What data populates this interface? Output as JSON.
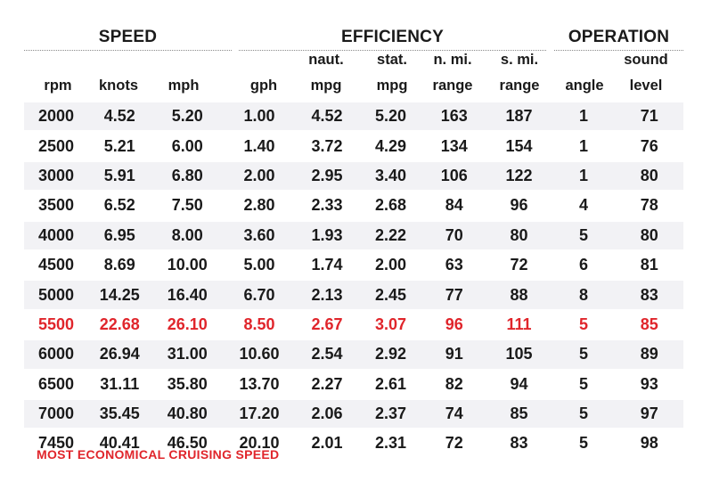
{
  "groups": {
    "speed": "SPEED",
    "efficiency": "EFFICIENCY",
    "operation": "OPERATION"
  },
  "columns": {
    "rpm": [
      "",
      "rpm"
    ],
    "knots": [
      "",
      "knots"
    ],
    "mph": [
      "",
      "mph"
    ],
    "gph": [
      "",
      "gph"
    ],
    "naut_mpg": [
      "naut.",
      "mpg"
    ],
    "stat_mpg": [
      "stat.",
      "mpg"
    ],
    "nmi_range": [
      "n. mi.",
      "range"
    ],
    "smi_range": [
      "s. mi.",
      "range"
    ],
    "angle": [
      "",
      "angle"
    ],
    "sound": [
      "sound",
      "level"
    ]
  },
  "colors": {
    "highlight": "#e0252b",
    "stripe": "#f2f2f5",
    "text": "#1a1a1a"
  },
  "chart_data": {
    "type": "table",
    "column_headers": [
      "rpm",
      "knots",
      "mph",
      "gph",
      "naut. mpg",
      "stat. mpg",
      "n. mi. range",
      "s. mi. range",
      "angle",
      "sound level"
    ],
    "rows": [
      [
        "2000",
        "4.52",
        "5.20",
        "1.00",
        "4.52",
        "5.20",
        "163",
        "187",
        "1",
        "71"
      ],
      [
        "2500",
        "5.21",
        "6.00",
        "1.40",
        "3.72",
        "4.29",
        "134",
        "154",
        "1",
        "76"
      ],
      [
        "3000",
        "5.91",
        "6.80",
        "2.00",
        "2.95",
        "3.40",
        "106",
        "122",
        "1",
        "80"
      ],
      [
        "3500",
        "6.52",
        "7.50",
        "2.80",
        "2.33",
        "2.68",
        "84",
        "96",
        "4",
        "78"
      ],
      [
        "4000",
        "6.95",
        "8.00",
        "3.60",
        "1.93",
        "2.22",
        "70",
        "80",
        "5",
        "80"
      ],
      [
        "4500",
        "8.69",
        "10.00",
        "5.00",
        "1.74",
        "2.00",
        "63",
        "72",
        "6",
        "81"
      ],
      [
        "5000",
        "14.25",
        "16.40",
        "6.70",
        "2.13",
        "2.45",
        "77",
        "88",
        "8",
        "83"
      ],
      [
        "5500",
        "22.68",
        "26.10",
        "8.50",
        "2.67",
        "3.07",
        "96",
        "111",
        "5",
        "85"
      ],
      [
        "6000",
        "26.94",
        "31.00",
        "10.60",
        "2.54",
        "2.92",
        "91",
        "105",
        "5",
        "89"
      ],
      [
        "6500",
        "31.11",
        "35.80",
        "13.70",
        "2.27",
        "2.61",
        "82",
        "94",
        "5",
        "93"
      ],
      [
        "7000",
        "35.45",
        "40.80",
        "17.20",
        "2.06",
        "2.37",
        "74",
        "85",
        "5",
        "97"
      ],
      [
        "7450",
        "40.41",
        "46.50",
        "20.10",
        "2.01",
        "2.31",
        "72",
        "83",
        "5",
        "98"
      ]
    ],
    "highlight_row": 7
  },
  "footnote": "MOST ECONOMICAL CRUISING SPEED"
}
